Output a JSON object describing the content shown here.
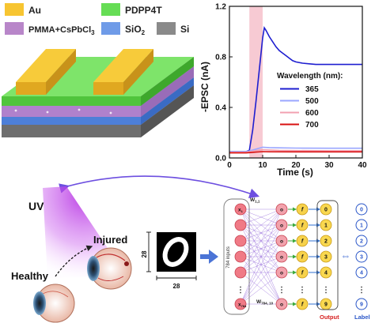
{
  "legend": {
    "items": [
      {
        "label": "Au",
        "color": "#f7c531"
      },
      {
        "label": "PDPP4T",
        "color": "#66dd55"
      },
      {
        "label": "PMMA+CsPbCl",
        "sub": "3",
        "color": "#b886c9"
      },
      {
        "label": "SiO",
        "sub": "2",
        "color": "#6f9be8"
      },
      {
        "label": "Si",
        "color": "#8a8a8a"
      }
    ]
  },
  "chart_data": {
    "type": "line",
    "xlabel": "Time (s)",
    "ylabel": "-EPSC (nA)",
    "xlim": [
      0,
      40
    ],
    "ylim": [
      0.0,
      1.2
    ],
    "xticks": [
      "0",
      "10",
      "20",
      "30",
      "40"
    ],
    "yticks": [
      "0.0",
      "0.4",
      "0.8",
      "1.2"
    ],
    "pulse": {
      "start": 6,
      "end": 10,
      "color": "#f4b8c4"
    },
    "legend_title": "Wavelength (nm):",
    "legend_position": "center-right",
    "series": [
      {
        "name": "365",
        "color": "#1e1ed0",
        "x": [
          0,
          5,
          6,
          7,
          8,
          9,
          10,
          10.5,
          11,
          12,
          13,
          14,
          15,
          16,
          17,
          18,
          19,
          20,
          22,
          24,
          26,
          28,
          30,
          32,
          34,
          36,
          38,
          40
        ],
        "y": [
          0.05,
          0.05,
          0.06,
          0.22,
          0.45,
          0.7,
          0.95,
          1.03,
          1.01,
          0.96,
          0.92,
          0.88,
          0.85,
          0.83,
          0.81,
          0.79,
          0.77,
          0.76,
          0.75,
          0.745,
          0.74,
          0.74,
          0.74,
          0.74,
          0.74,
          0.74,
          0.74,
          0.74
        ]
      },
      {
        "name": "500",
        "color": "#9aa6ff",
        "x": [
          0,
          5,
          6,
          8,
          10,
          12,
          15,
          20,
          30,
          40
        ],
        "y": [
          0.05,
          0.05,
          0.055,
          0.07,
          0.085,
          0.082,
          0.08,
          0.078,
          0.077,
          0.077
        ]
      },
      {
        "name": "600",
        "color": "#f2a0b0",
        "x": [
          0,
          5,
          6,
          8,
          10,
          12,
          15,
          20,
          30,
          40
        ],
        "y": [
          0.045,
          0.045,
          0.05,
          0.058,
          0.065,
          0.063,
          0.06,
          0.058,
          0.057,
          0.057
        ]
      },
      {
        "name": "700",
        "color": "#d81010",
        "x": [
          0,
          5,
          6,
          8,
          10,
          12,
          20,
          30,
          40
        ],
        "y": [
          0.04,
          0.04,
          0.042,
          0.046,
          0.05,
          0.049,
          0.048,
          0.048,
          0.048
        ]
      }
    ]
  },
  "bottom": {
    "uv_label": "UV",
    "injured_label": "Injured",
    "healthy_label": "Healthy",
    "digit_dim_label": "28",
    "network": {
      "input_top": "x",
      "input_top_sub": "1",
      "input_bottom": "x",
      "input_bottom_sub": "784",
      "input_side_label": "784 inputs",
      "weight_top": "W",
      "weight_top_sub": "1,1",
      "weight_bottom": "W",
      "weight_bottom_sub": "784, 10",
      "hidden_label": "o",
      "activation_label": "f",
      "outputs": [
        "0",
        "1",
        "2",
        "3",
        "4",
        "9"
      ],
      "labels": [
        "0",
        "1",
        "2",
        "3",
        "4",
        "9"
      ],
      "output_caption": "Output",
      "label_caption": "Label",
      "ellipsis": "⋮"
    }
  }
}
